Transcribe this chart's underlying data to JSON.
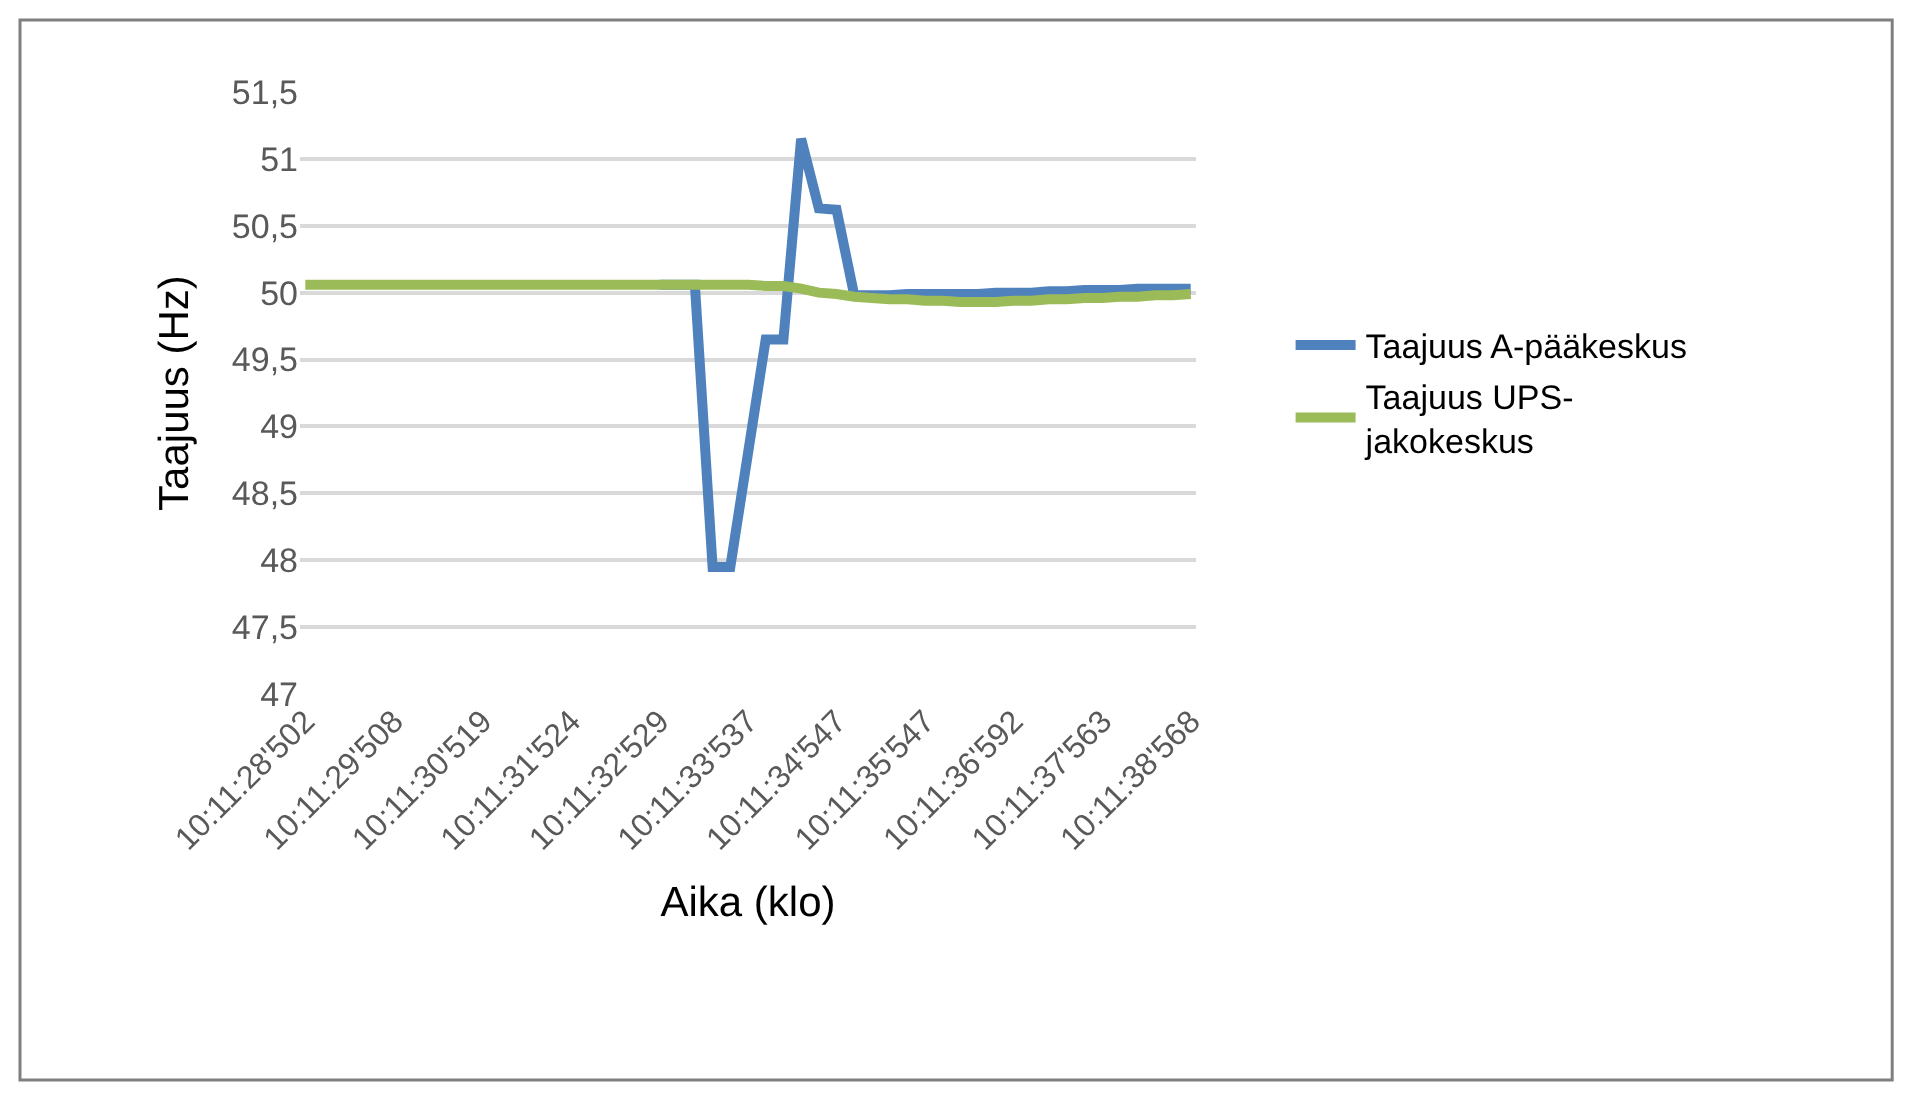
{
  "chart_data": {
    "type": "line",
    "xlabel": "Aika (klo)",
    "ylabel": "Taajuus (Hz)",
    "categories": [
      "10:11:28'502",
      null,
      null,
      null,
      null,
      "10:11:29'508",
      null,
      null,
      null,
      null,
      "10:11:30'519",
      null,
      null,
      null,
      null,
      "10:11:31'524",
      null,
      null,
      null,
      null,
      "10:11:32'529",
      null,
      null,
      null,
      null,
      "10:11:33'537",
      null,
      null,
      null,
      null,
      "10:11:34'547",
      null,
      null,
      null,
      null,
      "10:11:35'547",
      null,
      null,
      null,
      null,
      "10:11:36'592",
      null,
      null,
      null,
      null,
      "10:11:37'563",
      null,
      null,
      null,
      null,
      "10:11:38'568"
    ],
    "series": [
      {
        "name": "Taajuus A-pääkeskus",
        "color": "#4f81bd",
        "values": [
          null,
          null,
          null,
          null,
          null,
          null,
          null,
          null,
          null,
          null,
          null,
          null,
          null,
          null,
          null,
          null,
          null,
          null,
          null,
          null,
          50.06,
          50.06,
          50.06,
          47.95,
          47.95,
          48.8,
          49.65,
          49.65,
          51.15,
          50.63,
          50.62,
          49.98,
          49.98,
          49.98,
          49.99,
          49.99,
          49.99,
          49.99,
          49.99,
          50.0,
          50.0,
          50.0,
          50.01,
          50.01,
          50.02,
          50.02,
          50.02,
          50.03,
          50.03,
          50.03,
          50.03
        ]
      },
      {
        "name": "Taajuus UPS-jakokeskus",
        "color": "#9bbb59",
        "values": [
          50.06,
          50.06,
          50.06,
          50.06,
          50.06,
          50.06,
          50.06,
          50.06,
          50.06,
          50.06,
          50.06,
          50.06,
          50.06,
          50.06,
          50.06,
          50.06,
          50.06,
          50.06,
          50.06,
          50.06,
          50.06,
          50.06,
          50.06,
          50.06,
          50.06,
          50.06,
          50.05,
          50.05,
          50.03,
          50.0,
          49.99,
          49.97,
          49.96,
          49.95,
          49.95,
          49.94,
          49.94,
          49.93,
          49.93,
          49.93,
          49.94,
          49.94,
          49.95,
          49.95,
          49.96,
          49.96,
          49.97,
          49.97,
          49.98,
          49.98,
          49.99
        ]
      }
    ],
    "ylim": [
      47,
      51.5
    ],
    "yticks": [
      47,
      {
        "value": 47.5,
        "label": "47,5"
      },
      48,
      {
        "value": 48.5,
        "label": "48,5"
      },
      49,
      {
        "value": 49.5,
        "label": "49,5"
      },
      50,
      {
        "value": 50.5,
        "label": "50,5"
      },
      51,
      {
        "value": 51.5,
        "label": "51,5"
      }
    ],
    "grid": "y",
    "legend": "right",
    "marker": "none",
    "line_style": "solid"
  }
}
